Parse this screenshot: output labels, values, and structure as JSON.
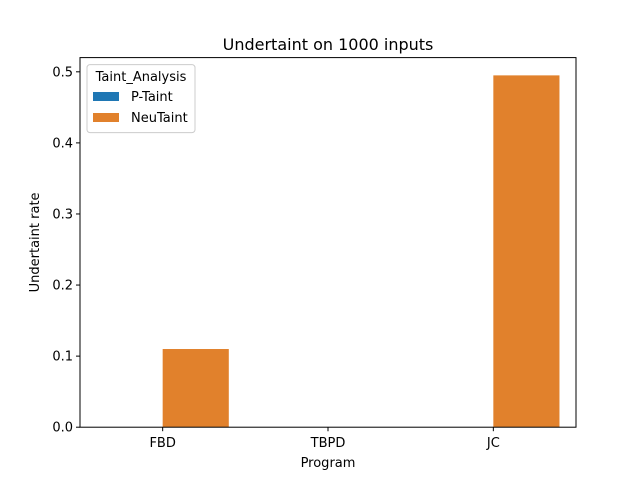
{
  "chart_data": {
    "type": "bar",
    "title": "Undertaint on 1000 inputs",
    "xlabel": "Program",
    "ylabel": "Undertaint rate",
    "categories": [
      "FBD",
      "TBPD",
      "JC"
    ],
    "ylim": [
      0,
      0.52
    ],
    "yticks": [
      0.0,
      0.1,
      0.2,
      0.3,
      0.4,
      0.5
    ],
    "ytick_labels": [
      "0.0",
      "0.1",
      "0.2",
      "0.3",
      "0.4",
      "0.5"
    ],
    "grid": false,
    "legend": {
      "title": "Taint_Analysis",
      "placement": "top-left"
    },
    "series": [
      {
        "name": "P-Taint",
        "values": [
          0,
          0,
          0
        ],
        "color": "#1f77b4"
      },
      {
        "name": "NeuTaint",
        "values": [
          0.11,
          0,
          0.495
        ],
        "color": "#ff7f0e"
      }
    ],
    "bar_color_rendered": "#e1812c"
  }
}
